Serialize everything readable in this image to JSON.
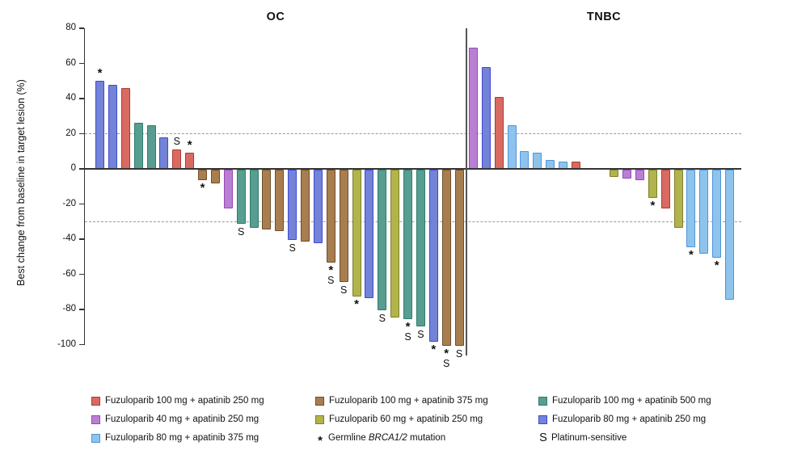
{
  "chart_data": {
    "type": "bar",
    "kind": "waterfall",
    "ylabel": "Best change from baseline in target lesion (%)",
    "ylim": [
      -100,
      80
    ],
    "yticks": [
      80,
      60,
      40,
      20,
      0,
      -20,
      -40,
      -60,
      -80,
      -100
    ],
    "reference_lines": [
      20,
      -30
    ],
    "grid": "dashed horizontal reference lines at +20 and -30 only",
    "legend_position": "bottom",
    "groups": {
      "f100a250": {
        "label": "Fuzuloparib 100 mg + apatinib 250 mg",
        "fill": "#d96a62",
        "border": "#ad3a32"
      },
      "f100a375": {
        "label": "Fuzuloparib 100 mg + apatinib 375 mg",
        "fill": "#a87e50",
        "border": "#6f4e2a"
      },
      "f100a500": {
        "label": "Fuzuloparib 100 mg + apatinib 500 mg",
        "fill": "#579d90",
        "border": "#2d7d6c"
      },
      "f40a250": {
        "label": "Fuzuloparib 40 mg + apatinib 250 mg",
        "fill": "#b97fd3",
        "border": "#9549b5"
      },
      "f60a250": {
        "label": "Fuzuloparib 60 mg + apatinib 250 mg",
        "fill": "#b1b34c",
        "border": "#7e8028"
      },
      "f80a250": {
        "label": "Fuzuloparib 80 mg + apatinib 250 mg",
        "fill": "#7283d8",
        "border": "#4348cf"
      },
      "f80a375": {
        "label": "Fuzuloparib 80 mg + apatinib 375 mg",
        "fill": "#8ec3ec",
        "border": "#4f95d9"
      }
    },
    "marks_legend": {
      "*": "Germline BRCA1/2 mutation",
      "S": "Platinum-sensitive"
    },
    "panels": [
      {
        "title": "OC",
        "bars": [
          {
            "value": 50,
            "group": "f80a250",
            "marks": [
              "*"
            ]
          },
          {
            "value": 48,
            "group": "f80a250"
          },
          {
            "value": 46,
            "group": "f100a250"
          },
          {
            "value": 26,
            "group": "f100a500"
          },
          {
            "value": 25,
            "group": "f100a500"
          },
          {
            "value": 18,
            "group": "f80a250"
          },
          {
            "value": 11,
            "group": "f100a250",
            "marks": [
              "S"
            ]
          },
          {
            "value": 9,
            "group": "f100a250",
            "marks": [
              "*"
            ]
          },
          {
            "value": -6,
            "group": "f100a375",
            "marks": [
              "*"
            ]
          },
          {
            "value": -8,
            "group": "f100a375"
          },
          {
            "value": -22,
            "group": "f40a250"
          },
          {
            "value": -31,
            "group": "f100a500",
            "marks": [
              "S"
            ]
          },
          {
            "value": -33,
            "group": "f100a500"
          },
          {
            "value": -34,
            "group": "f100a375"
          },
          {
            "value": -35,
            "group": "f100a375"
          },
          {
            "value": -40,
            "group": "f80a250",
            "marks": [
              "S"
            ]
          },
          {
            "value": -41,
            "group": "f100a375"
          },
          {
            "value": -42,
            "group": "f80a250"
          },
          {
            "value": -53,
            "group": "f100a375",
            "marks": [
              "*",
              "S"
            ]
          },
          {
            "value": -64,
            "group": "f100a375",
            "marks": [
              "S"
            ]
          },
          {
            "value": -72,
            "group": "f60a250",
            "marks": [
              "*"
            ]
          },
          {
            "value": -73,
            "group": "f80a250"
          },
          {
            "value": -80,
            "group": "f100a500",
            "marks": [
              "S"
            ]
          },
          {
            "value": -84,
            "group": "f60a250"
          },
          {
            "value": -85,
            "group": "f100a500",
            "marks": [
              "*",
              "S"
            ]
          },
          {
            "value": -89,
            "group": "f100a500",
            "marks": [
              "S"
            ]
          },
          {
            "value": -98,
            "group": "f80a250",
            "marks": [
              "*"
            ]
          },
          {
            "value": -100,
            "group": "f100a375",
            "marks": [
              "*",
              "S"
            ]
          },
          {
            "value": -100,
            "group": "f100a375",
            "marks": [
              "S"
            ]
          }
        ]
      },
      {
        "title": "TNBC",
        "bars": [
          {
            "value": 69,
            "group": "f40a250"
          },
          {
            "value": 58,
            "group": "f80a250"
          },
          {
            "value": 41,
            "group": "f100a250"
          },
          {
            "value": 25,
            "group": "f80a375"
          },
          {
            "value": 10,
            "group": "f80a375"
          },
          {
            "value": 9,
            "group": "f80a375"
          },
          {
            "value": 5,
            "group": "f80a375"
          },
          {
            "value": 4,
            "group": "f80a375"
          },
          {
            "value": 4,
            "group": "f100a250"
          },
          {
            "value": 0,
            "group": null
          },
          {
            "value": 0,
            "group": null
          },
          {
            "value": -4,
            "group": "f60a250"
          },
          {
            "value": -5,
            "group": "f40a250"
          },
          {
            "value": -6,
            "group": "f40a250"
          },
          {
            "value": -16,
            "group": "f60a250",
            "marks": [
              "*"
            ]
          },
          {
            "value": -22,
            "group": "f100a250"
          },
          {
            "value": -33,
            "group": "f60a250"
          },
          {
            "value": -44,
            "group": "f80a375",
            "marks": [
              "*"
            ]
          },
          {
            "value": -48,
            "group": "f80a375"
          },
          {
            "value": -50,
            "group": "f80a375",
            "marks": [
              "*"
            ]
          },
          {
            "value": -74,
            "group": "f80a375"
          }
        ]
      }
    ]
  },
  "legend": {
    "columns": [
      {
        "entries": [
          {
            "type": "swatch",
            "group": "f100a250"
          },
          {
            "type": "swatch",
            "group": "f40a250"
          },
          {
            "type": "swatch",
            "group": "f80a375"
          }
        ]
      },
      {
        "entries": [
          {
            "type": "swatch",
            "group": "f100a375"
          },
          {
            "type": "swatch",
            "group": "f60a250"
          },
          {
            "type": "symbol",
            "symbol": "*",
            "label_parts": [
              {
                "t": "Germline "
              },
              {
                "t": "BRCA1/2",
                "i": true
              },
              {
                "t": " mutation"
              }
            ]
          }
        ]
      },
      {
        "entries": [
          {
            "type": "swatch",
            "group": "f100a500"
          },
          {
            "type": "swatch",
            "group": "f80a250"
          },
          {
            "type": "symbol",
            "symbol": "S",
            "label_parts": [
              {
                "t": "Platinum-sensitive"
              }
            ]
          }
        ]
      }
    ]
  }
}
